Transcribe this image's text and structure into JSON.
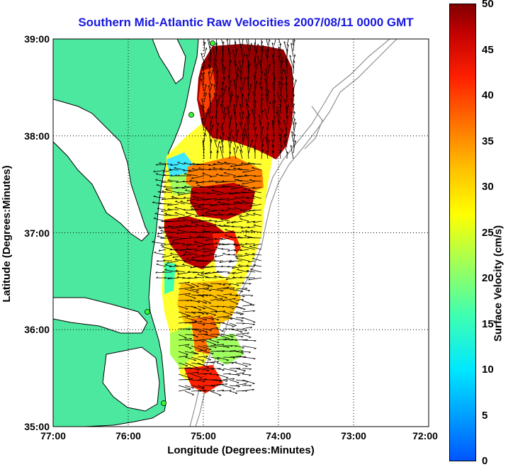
{
  "title": "Southern Mid-Atlantic Raw Velocities 2007/08/11 0000 GMT",
  "axes": {
    "xlabel": "Longitude (Degrees:Minutes)",
    "ylabel": "Latitude (Degrees:Minutes)",
    "x_ticks": [
      "77:00",
      "76:00",
      "75:00",
      "74:00",
      "73:00",
      "72:00"
    ],
    "y_ticks": [
      "39:00",
      "38:00",
      "37:00",
      "36:00",
      "35:00"
    ]
  },
  "colorbar": {
    "label": "Surface Velocity (cm/s)",
    "ticks": [
      "50",
      "45",
      "40",
      "35",
      "30",
      "25",
      "20",
      "15",
      "10",
      "5",
      "0"
    ]
  },
  "colors": {
    "land": "#4de8a0",
    "coast_line": "#000000",
    "bathymetry": "#909090",
    "title": "#1818e0"
  }
}
